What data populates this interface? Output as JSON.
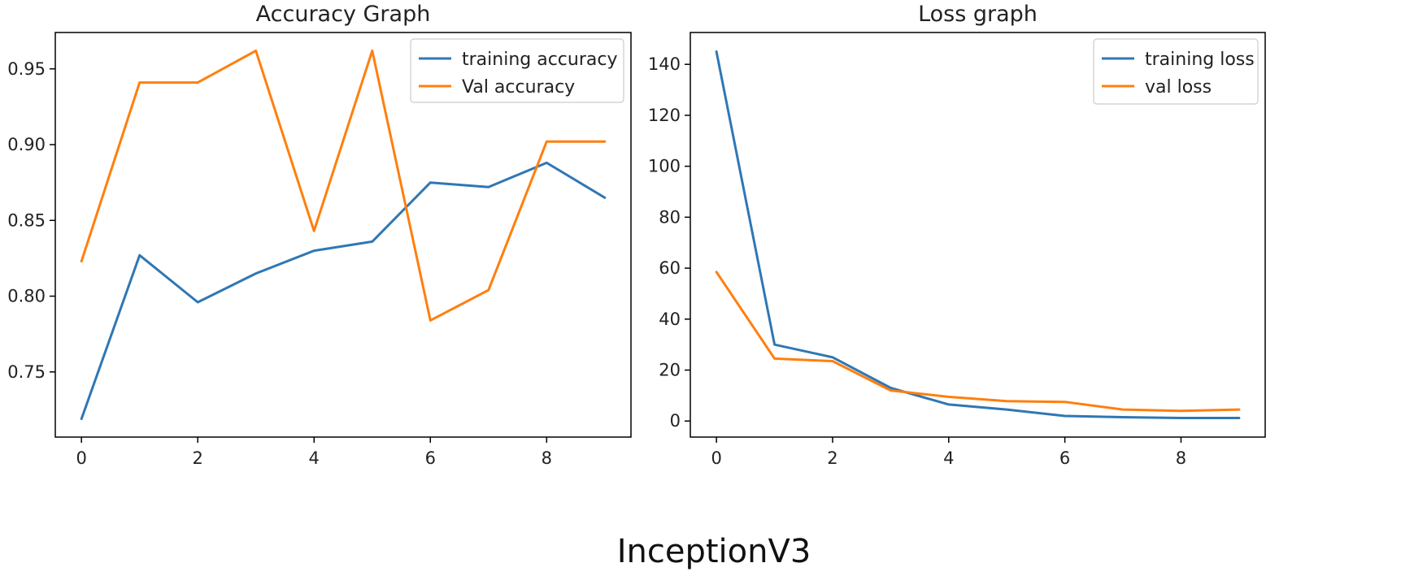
{
  "caption": "InceptionV3",
  "colors": {
    "training": "#2f77b4",
    "val": "#ff7f0e",
    "axis": "#000000"
  },
  "chart_data": [
    {
      "type": "line",
      "title": "Accuracy Graph",
      "xlabel": "",
      "ylabel": "",
      "x": [
        0,
        1,
        2,
        3,
        4,
        5,
        6,
        7,
        8,
        9
      ],
      "series": [
        {
          "name": "training accuracy",
          "values": [
            0.719,
            0.827,
            0.796,
            0.815,
            0.83,
            0.836,
            0.875,
            0.872,
            0.888,
            0.865
          ]
        },
        {
          "name": "Val accuracy",
          "values": [
            0.823,
            0.941,
            0.941,
            0.962,
            0.843,
            0.962,
            0.784,
            0.804,
            0.902,
            0.902
          ]
        }
      ],
      "xlim": [
        -0.45,
        9.45
      ],
      "ylim": [
        0.707,
        0.974
      ],
      "xticks": [
        0,
        2,
        4,
        6,
        8
      ],
      "xtick_labels": [
        "0",
        "2",
        "4",
        "6",
        "8"
      ],
      "yticks": [
        0.75,
        0.8,
        0.85,
        0.9,
        0.95
      ],
      "ytick_labels": [
        "0.75",
        "0.80",
        "0.85",
        "0.90",
        "0.95"
      ],
      "grid": false,
      "legend": "upper right"
    },
    {
      "type": "line",
      "title": "Loss graph",
      "xlabel": "",
      "ylabel": "",
      "x": [
        0,
        1,
        2,
        3,
        4,
        5,
        6,
        7,
        8,
        9
      ],
      "series": [
        {
          "name": "training loss",
          "values": [
            145,
            30,
            25,
            13,
            6.5,
            4.5,
            2,
            1.5,
            1.2,
            1.2
          ]
        },
        {
          "name": "val loss",
          "values": [
            58.5,
            24.5,
            23.5,
            12,
            9.5,
            7.8,
            7.5,
            4.5,
            4,
            4.5
          ]
        }
      ],
      "xlim": [
        -0.45,
        9.45
      ],
      "ylim": [
        -6.3,
        152.5
      ],
      "xticks": [
        0,
        2,
        4,
        6,
        8
      ],
      "xtick_labels": [
        "0",
        "2",
        "4",
        "6",
        "8"
      ],
      "yticks": [
        0,
        20,
        40,
        60,
        80,
        100,
        120,
        140
      ],
      "ytick_labels": [
        "0",
        "20",
        "40",
        "60",
        "80",
        "100",
        "120",
        "140"
      ],
      "grid": false,
      "legend": "upper right"
    }
  ]
}
